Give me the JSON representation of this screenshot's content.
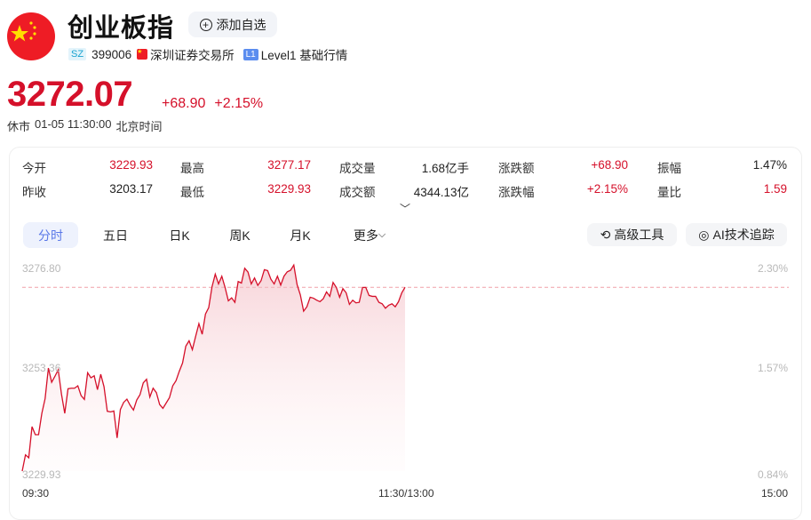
{
  "header": {
    "title": "创业板指",
    "add_watch_label": "添加自选",
    "exchange_badge": "SZ",
    "code": "399006",
    "exchange": "深圳证券交易所",
    "level_badge": "L1",
    "level": "Level1 基础行情"
  },
  "quote": {
    "price": "3272.07",
    "change": "+68.90",
    "change_pct": "+2.15%",
    "status": "休市",
    "datetime": "01-05 11:30:00",
    "timezone": "北京时间"
  },
  "colors": {
    "up": "#d5102a",
    "accent": "#5a78e8"
  },
  "stats": [
    [
      {
        "label": "今开",
        "value": "3229.93",
        "red": true
      },
      {
        "label": "最高",
        "value": "3277.17",
        "red": true
      },
      {
        "label": "成交量",
        "value": "1.68亿手",
        "red": false
      },
      {
        "label": "涨跌额",
        "value": "+68.90",
        "red": true
      },
      {
        "label": "振幅",
        "value": "1.47%",
        "red": false
      }
    ],
    [
      {
        "label": "昨收",
        "value": "3203.17",
        "red": false
      },
      {
        "label": "最低",
        "value": "3229.93",
        "red": true
      },
      {
        "label": "成交额",
        "value": "4344.13亿",
        "red": false
      },
      {
        "label": "涨跌幅",
        "value": "+2.15%",
        "red": true
      },
      {
        "label": "量比",
        "value": "1.59",
        "red": true
      }
    ]
  ],
  "tabs": [
    {
      "label": "分时",
      "active": true
    },
    {
      "label": "五日"
    },
    {
      "label": "日K"
    },
    {
      "label": "周K"
    },
    {
      "label": "月K"
    },
    {
      "label": "更多"
    }
  ],
  "tools": {
    "advanced": "高级工具",
    "ai": "AI技术追踪"
  },
  "chart_data": {
    "type": "line",
    "y_ticks_left": [
      "3276.80",
      "3253.36",
      "3229.93"
    ],
    "y_ticks_right": [
      "2.30%",
      "1.57%",
      "0.84%"
    ],
    "x_ticks": [
      "09:30",
      "11:30/13:00",
      "15:00"
    ],
    "ylim": [
      3229.93,
      3276.8
    ],
    "x_range": [
      "09:30",
      "15:00"
    ],
    "data_span": [
      "09:30",
      "11:30"
    ],
    "reference_line": 3272.07,
    "values": [
      3229.93,
      3233.66,
      3232.99,
      3240.12,
      3238.28,
      3238.28,
      3243.17,
      3246.57,
      3253.56,
      3250.3,
      3251.66,
      3253.15,
      3247.58,
      3243.17,
      3248.81,
      3248.94,
      3248.94,
      3249.49,
      3247.24,
      3246.36,
      3252.47,
      3251.32,
      3251.79,
      3248.6,
      3252.13,
      3249.28,
      3243.65,
      3243.51,
      3243.71,
      3237.53,
      3244.05,
      3245.68,
      3246.43,
      3245.0,
      3243.92,
      3246.23,
      3247.45,
      3250.16,
      3250.98,
      3246.91,
      3248.94,
      3247.92,
      3245.21,
      3244.32,
      3245.55,
      3246.77,
      3249.49,
      3250.64,
      3252.81,
      3254.71,
      3258.58,
      3259.81,
      3257.77,
      3260.82,
      3263.74,
      3261.3,
      3265.92,
      3267.41,
      3272.16,
      3275.08,
      3272.84,
      3274.61,
      3272.03,
      3268.97,
      3269.65,
      3268.63,
      3273.39,
      3273.05,
      3276.44,
      3275.56,
      3272.84,
      3274.2,
      3272.5,
      3273.59,
      3276.1,
      3275.9,
      3273.93,
      3272.84,
      3274.61,
      3272.57,
      3274.61,
      3275.63,
      3275.97,
      3277.17,
      3272.71,
      3270.33,
      3266.6,
      3267.61,
      3269.79,
      3269.58,
      3269.11,
      3268.77,
      3269.45,
      3271.01,
      3269.99,
      3273.18,
      3272.03,
      3269.79,
      3271.76,
      3270.81,
      3268.16,
      3269.11,
      3268.5,
      3268.63,
      3272.03,
      3272.03,
      3270.19,
      3269.99,
      3269.99,
      3268.63,
      3268.29,
      3267.27,
      3267.95,
      3268.29,
      3267.61,
      3268.77,
      3270.81,
      3272.07
    ]
  }
}
